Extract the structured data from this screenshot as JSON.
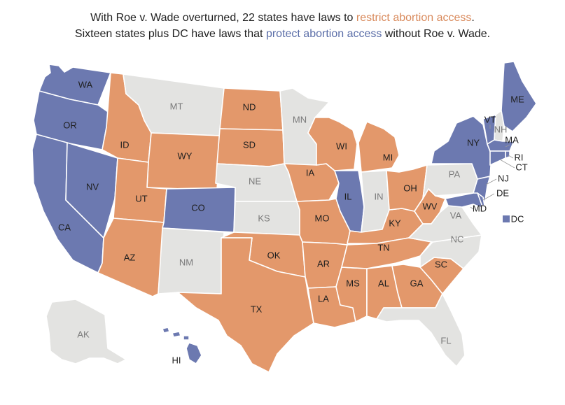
{
  "title": {
    "line1_prefix": "With Roe v. Wade overturned, 22 states have laws to ",
    "line1_highlight": "restrict abortion access",
    "line1_suffix": ".",
    "line2_prefix": "Sixteen states plus DC have laws that ",
    "line2_highlight": "protect abortion access",
    "line2_suffix": " without Roe v. Wade."
  },
  "colors": {
    "restrict": "#e3986b",
    "protect": "#6c79b0",
    "neutral": "#e3e3e1",
    "border": "#ffffff"
  },
  "dc_legend": {
    "label": "DC",
    "status": "protect"
  },
  "states": [
    {
      "code": "WA",
      "status": "protect"
    },
    {
      "code": "OR",
      "status": "protect"
    },
    {
      "code": "CA",
      "status": "protect"
    },
    {
      "code": "NV",
      "status": "protect"
    },
    {
      "code": "ID",
      "status": "restrict"
    },
    {
      "code": "MT",
      "status": "neutral"
    },
    {
      "code": "WY",
      "status": "restrict"
    },
    {
      "code": "UT",
      "status": "restrict"
    },
    {
      "code": "AZ",
      "status": "restrict"
    },
    {
      "code": "CO",
      "status": "protect"
    },
    {
      "code": "NM",
      "status": "neutral"
    },
    {
      "code": "ND",
      "status": "restrict"
    },
    {
      "code": "SD",
      "status": "restrict"
    },
    {
      "code": "NE",
      "status": "neutral"
    },
    {
      "code": "KS",
      "status": "neutral"
    },
    {
      "code": "OK",
      "status": "restrict"
    },
    {
      "code": "TX",
      "status": "restrict"
    },
    {
      "code": "MN",
      "status": "neutral"
    },
    {
      "code": "IA",
      "status": "restrict"
    },
    {
      "code": "MO",
      "status": "restrict"
    },
    {
      "code": "AR",
      "status": "restrict"
    },
    {
      "code": "LA",
      "status": "restrict"
    },
    {
      "code": "WI",
      "status": "restrict"
    },
    {
      "code": "IL",
      "status": "protect"
    },
    {
      "code": "MS",
      "status": "restrict"
    },
    {
      "code": "MI",
      "status": "restrict"
    },
    {
      "code": "IN",
      "status": "neutral"
    },
    {
      "code": "KY",
      "status": "restrict"
    },
    {
      "code": "TN",
      "status": "restrict"
    },
    {
      "code": "AL",
      "status": "restrict"
    },
    {
      "code": "OH",
      "status": "restrict"
    },
    {
      "code": "WV",
      "status": "restrict"
    },
    {
      "code": "GA",
      "status": "restrict"
    },
    {
      "code": "FL",
      "status": "neutral"
    },
    {
      "code": "SC",
      "status": "restrict"
    },
    {
      "code": "NC",
      "status": "neutral"
    },
    {
      "code": "VA",
      "status": "neutral"
    },
    {
      "code": "PA",
      "status": "neutral"
    },
    {
      "code": "NY",
      "status": "protect"
    },
    {
      "code": "VT",
      "status": "protect"
    },
    {
      "code": "NH",
      "status": "neutral"
    },
    {
      "code": "ME",
      "status": "protect"
    },
    {
      "code": "MA",
      "status": "protect"
    },
    {
      "code": "RI",
      "status": "protect"
    },
    {
      "code": "CT",
      "status": "protect"
    },
    {
      "code": "NJ",
      "status": "protect"
    },
    {
      "code": "DE",
      "status": "protect"
    },
    {
      "code": "MD",
      "status": "protect"
    },
    {
      "code": "AK",
      "status": "neutral"
    },
    {
      "code": "HI",
      "status": "protect"
    }
  ]
}
